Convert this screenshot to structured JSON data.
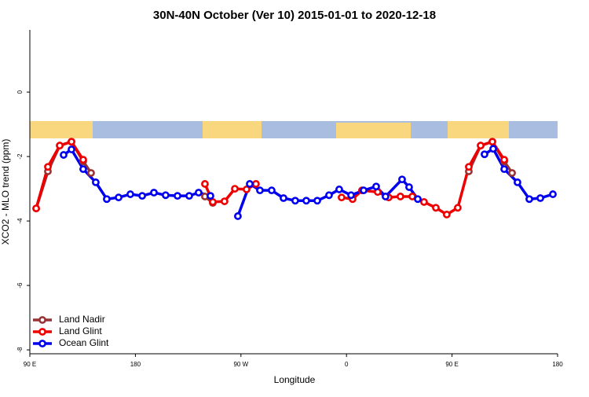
{
  "chart_data": {
    "type": "line",
    "title": "30N-40N October (Ver 10)   2015-01-01 to 2020-12-18",
    "x_label": "Longitude",
    "y_label": "XCO2 - MLO trend (ppm)",
    "xlim": [
      90,
      540
    ],
    "ylim": [
      -8.12,
      1.93
    ],
    "xticks": [
      {
        "value": 90,
        "label": "90 E"
      },
      180,
      {
        "value": 270,
        "label": "90 W"
      },
      {
        "value": 360,
        "label": "0"
      },
      {
        "value": 450,
        "label": "90 E"
      },
      {
        "value": 540,
        "label": "180"
      }
    ],
    "yticks": [
      0,
      -2,
      -4,
      -6,
      -8
    ],
    "legend": "bottom-left",
    "series": [
      {
        "name": "Land Nadir",
        "color": "#993333",
        "x": [
          95.4,
          105.4,
          115.5,
          125.5,
          135.5,
          142.2,
          null,
          239.3,
          246,
          null,
          464.3,
          474.4,
          484.4,
          494.5,
          501.2
        ],
        "values": [
          -3.61,
          -2.46,
          -1.66,
          -1.54,
          -2.15,
          -2.51,
          null,
          -3.24,
          -3.44,
          null,
          -2.46,
          -1.66,
          -1.54,
          -2.15,
          -2.51
        ]
      },
      {
        "name": "Land Glint",
        "color": "#ee0000",
        "x": [
          95.4,
          105.4,
          115.5,
          125.5,
          135.5,
          null,
          239.3,
          246,
          256,
          264.8,
          274.8,
          282.8,
          null,
          355.8,
          365.2,
          373.2,
          386.6,
          396,
          406,
          416.1,
          426.1,
          436.2,
          445.5,
          454.9,
          464.3,
          474.4,
          484.4,
          494.5
        ],
        "values": [
          -3.61,
          -2.32,
          -1.66,
          -1.54,
          -2.1,
          null,
          -2.85,
          -3.41,
          -3.39,
          -3.0,
          -3.02,
          -2.85,
          null,
          -3.27,
          -3.32,
          -3.05,
          -3.1,
          -3.27,
          -3.24,
          -3.24,
          -3.41,
          -3.59,
          -3.8,
          -3.59,
          -2.32,
          -1.66,
          -1.54,
          -2.1
        ]
      },
      {
        "name": "Ocean Glint",
        "color": "#0000ee",
        "x": [
          118.8,
          125.5,
          135.5,
          146.2,
          155.6,
          165.7,
          175.7,
          185.8,
          195.8,
          205.8,
          215.9,
          225.9,
          233.9,
          244,
          null,
          267.4,
          277.5,
          286.2,
          296.2,
          306.3,
          316.3,
          325.7,
          335.1,
          345.1,
          353.8,
          363.9,
          374.6,
          385.3,
          393.3,
          407.4,
          413.4,
          420.8,
          null,
          477.7,
          485.1,
          494.5,
          505.8,
          515.9,
          525.3,
          536
        ],
        "values": [
          -1.95,
          -1.78,
          -2.39,
          -2.8,
          -3.32,
          -3.27,
          -3.17,
          -3.22,
          -3.12,
          -3.2,
          -3.22,
          -3.22,
          -3.12,
          -3.22,
          null,
          -3.85,
          -2.85,
          -3.05,
          -3.05,
          -3.29,
          -3.37,
          -3.37,
          -3.37,
          -3.2,
          -3.02,
          -3.2,
          -3.05,
          -2.93,
          -3.24,
          -2.71,
          -2.95,
          -3.32,
          null,
          -1.93,
          -1.76,
          -2.39,
          -2.8,
          -3.32,
          -3.29,
          -3.17
        ]
      }
    ]
  }
}
